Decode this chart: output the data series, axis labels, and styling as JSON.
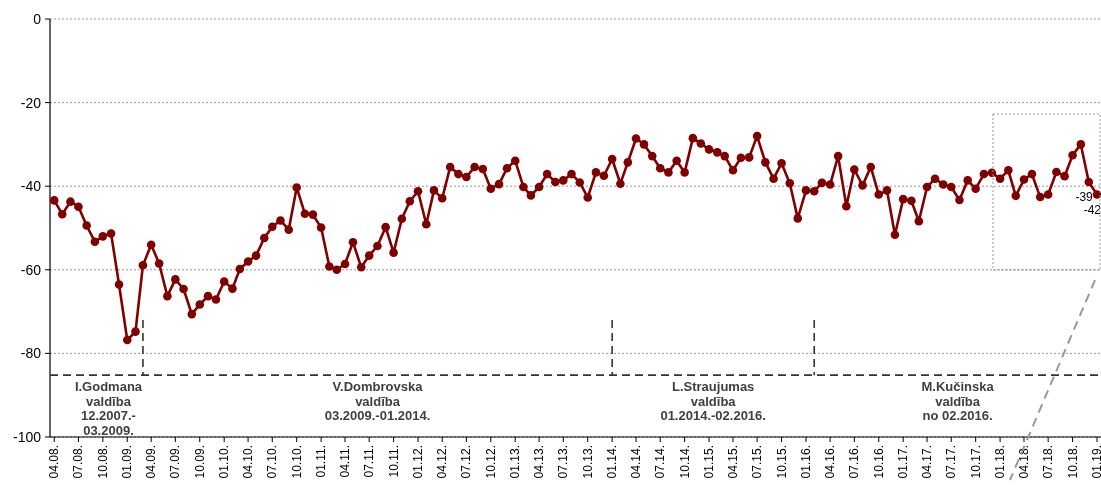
{
  "chart_data": {
    "type": "line",
    "x": [
      "2008-04",
      "2008-05",
      "2008-06",
      "2008-07",
      "2008-08",
      "2008-09",
      "2008-10",
      "2008-11",
      "2008-12",
      "2009-01",
      "2009-02",
      "2009-03",
      "2009-04",
      "2009-05",
      "2009-06",
      "2009-07",
      "2009-08",
      "2009-09",
      "2009-10",
      "2009-11",
      "2009-12",
      "2010-01",
      "2010-02",
      "2010-03",
      "2010-04",
      "2010-05",
      "2010-06",
      "2010-07",
      "2010-08",
      "2010-09",
      "2010-10",
      "2010-11",
      "2010-12",
      "2011-01",
      "2011-02",
      "2011-03",
      "2011-04",
      "2011-05",
      "2011-06",
      "2011-07",
      "2011-08",
      "2011-09",
      "2011-10",
      "2011-11",
      "2011-12",
      "2012-01",
      "2012-02",
      "2012-03",
      "2012-04",
      "2012-05",
      "2012-06",
      "2012-07",
      "2012-08",
      "2012-09",
      "2012-10",
      "2012-11",
      "2012-12",
      "2013-01",
      "2013-02",
      "2013-03",
      "2013-04",
      "2013-05",
      "2013-06",
      "2013-07",
      "2013-08",
      "2013-09",
      "2013-10",
      "2013-11",
      "2013-12",
      "2014-01",
      "2014-02",
      "2014-03",
      "2014-04",
      "2014-05",
      "2014-06",
      "2014-07",
      "2014-08",
      "2014-09",
      "2014-10",
      "2014-11",
      "2014-12",
      "2015-01",
      "2015-02",
      "2015-03",
      "2015-04",
      "2015-05",
      "2015-06",
      "2015-07",
      "2015-08",
      "2015-09",
      "2015-10",
      "2015-11",
      "2015-12",
      "2016-01",
      "2016-02",
      "2016-03",
      "2016-04",
      "2016-05",
      "2016-06",
      "2016-07",
      "2016-08",
      "2016-09",
      "2016-10",
      "2016-11",
      "2016-12",
      "2017-01",
      "2017-02",
      "2017-03",
      "2017-04",
      "2017-05",
      "2017-06",
      "2017-07",
      "2017-08",
      "2017-09",
      "2017-10",
      "2017-11",
      "2017-12",
      "2018-01",
      "2018-02",
      "2018-03",
      "2018-04",
      "2018-05",
      "2018-06",
      "2018-07",
      "2018-08",
      "2018-09",
      "2018-10",
      "2018-11",
      "2018-12",
      "2019-01"
    ],
    "series": [
      {
        "color": "#800000",
        "values": [
          -43.4,
          -46.7,
          -43.7,
          -44.9,
          -49.4,
          -53.3,
          -52.0,
          -51.3,
          -63.5,
          -76.8,
          -74.8,
          -58.9,
          -54.0,
          -58.5,
          -66.3,
          -62.3,
          -64.6,
          -70.6,
          -68.3,
          -66.3,
          -67.1,
          -62.8,
          -64.5,
          -59.8,
          -58.0,
          -56.6,
          -52.4,
          -49.7,
          -48.2,
          -50.4,
          -40.3,
          -46.6,
          -46.8,
          -49.9,
          -59.2,
          -60.0,
          -58.6,
          -53.4,
          -59.4,
          -56.6,
          -54.3,
          -49.8,
          -55.9,
          -47.8,
          -43.6,
          -41.2,
          -49.1,
          -41.0,
          -42.9,
          -35.4,
          -37.1,
          -37.8,
          -35.4,
          -35.9,
          -40.6,
          -39.5,
          -35.7,
          -33.9,
          -40.2,
          -42.2,
          -40.2,
          -37.1,
          -39.0,
          -38.6,
          -37.1,
          -39.1,
          -42.7,
          -36.7,
          -37.5,
          -33.5,
          -39.4,
          -34.3,
          -28.6,
          -30.0,
          -32.8,
          -35.7,
          -36.7,
          -33.9,
          -36.7,
          -28.5,
          -29.8,
          -31.2,
          -31.9,
          -32.8,
          -36.2,
          -33.2,
          -33.1,
          -28.0,
          -34.3,
          -38.2,
          -34.5,
          -39.3,
          -47.7,
          -41.0,
          -41.2,
          -39.2,
          -39.6,
          -32.8,
          -44.8,
          -36.0,
          -39.8,
          -35.4,
          -42.0,
          -41.0,
          -51.6,
          -43.1,
          -43.5,
          -48.4,
          -40.2,
          -38.2,
          -39.6,
          -40.2,
          -43.3,
          -38.6,
          -40.6,
          -37.1,
          -36.8,
          -38.2,
          -36.2,
          -42.3,
          -38.4,
          -37.1,
          -42.6,
          -42.0,
          -36.6,
          -37.6,
          -32.6,
          -30.0,
          -39,
          -42
        ],
        "value_labels": [
          null,
          null,
          null,
          null,
          null,
          null,
          null,
          null,
          null,
          null,
          null,
          null,
          null,
          null,
          null,
          null,
          null,
          null,
          null,
          null,
          null,
          null,
          null,
          null,
          null,
          null,
          null,
          null,
          null,
          null,
          null,
          null,
          null,
          null,
          null,
          null,
          null,
          null,
          null,
          null,
          null,
          null,
          null,
          null,
          null,
          null,
          null,
          null,
          null,
          null,
          null,
          null,
          null,
          null,
          null,
          null,
          null,
          null,
          null,
          null,
          null,
          null,
          null,
          null,
          null,
          null,
          null,
          null,
          null,
          null,
          null,
          null,
          null,
          null,
          null,
          null,
          null,
          null,
          null,
          null,
          null,
          null,
          null,
          null,
          null,
          null,
          null,
          null,
          null,
          null,
          null,
          null,
          null,
          null,
          null,
          null,
          null,
          null,
          null,
          null,
          null,
          null,
          null,
          null,
          null,
          null,
          null,
          null,
          null,
          null,
          null,
          null,
          null,
          null,
          null,
          null,
          null,
          null,
          null,
          null,
          null,
          null,
          null,
          null,
          null,
          null,
          null,
          null,
          "-39",
          "-42"
        ]
      }
    ],
    "ylim": [
      -100,
      0
    ],
    "yticks": [
      0,
      -20,
      -40,
      -60,
      -80,
      -100
    ],
    "xlim": [
      "2008-03-16",
      "2019-01-16"
    ],
    "xticks": [
      {
        "value": "2008-04",
        "label": "04.08."
      },
      {
        "value": "2008-07",
        "label": "07.08."
      },
      {
        "value": "2008-10",
        "label": "10.08."
      },
      {
        "value": "2009-01",
        "label": "01.09."
      },
      {
        "value": "2009-04",
        "label": "04.09."
      },
      {
        "value": "2009-07",
        "label": "07.09."
      },
      {
        "value": "2009-10",
        "label": "10.09."
      },
      {
        "value": "2010-01",
        "label": "01.10."
      },
      {
        "value": "2010-04",
        "label": "04.10."
      },
      {
        "value": "2010-07",
        "label": "07.10."
      },
      {
        "value": "2010-10",
        "label": "10.10."
      },
      {
        "value": "2011-01",
        "label": "01.11."
      },
      {
        "value": "2011-04",
        "label": "04.11."
      },
      {
        "value": "2011-07",
        "label": "07.11."
      },
      {
        "value": "2011-10",
        "label": "10.11."
      },
      {
        "value": "2012-01",
        "label": "01.12."
      },
      {
        "value": "2012-04",
        "label": "04.12."
      },
      {
        "value": "2012-07",
        "label": "07.12."
      },
      {
        "value": "2012-10",
        "label": "10.12."
      },
      {
        "value": "2013-01",
        "label": "01.13."
      },
      {
        "value": "2013-04",
        "label": "04.13."
      },
      {
        "value": "2013-07",
        "label": "07.13."
      },
      {
        "value": "2013-10",
        "label": "10.13."
      },
      {
        "value": "2014-01",
        "label": "01.14."
      },
      {
        "value": "2014-04",
        "label": "04.14."
      },
      {
        "value": "2014-07",
        "label": "07.14."
      },
      {
        "value": "2014-10",
        "label": "10.14."
      },
      {
        "value": "2015-01",
        "label": "01.15."
      },
      {
        "value": "2015-04",
        "label": "04.15."
      },
      {
        "value": "2015-07",
        "label": "07.15."
      },
      {
        "value": "2015-10",
        "label": "10.15."
      },
      {
        "value": "2016-01",
        "label": "01.16."
      },
      {
        "value": "2016-04",
        "label": "04.16."
      },
      {
        "value": "2016-07",
        "label": "07.16."
      },
      {
        "value": "2016-10",
        "label": "10.16."
      },
      {
        "value": "2017-01",
        "label": "01.17."
      },
      {
        "value": "2017-04",
        "label": "04.17."
      },
      {
        "value": "2017-07",
        "label": "07.17."
      },
      {
        "value": "2017-10",
        "label": "10.17."
      },
      {
        "value": "2018-01",
        "label": "01.18."
      },
      {
        "value": "2018-04",
        "label": "04.18."
      },
      {
        "value": "2018-07",
        "label": "07.18."
      },
      {
        "value": "2018-10",
        "label": "10.18."
      },
      {
        "value": "2019-01",
        "label": "01.19."
      }
    ],
    "ref_lines": [
      {
        "axis": "y",
        "value": -85.2,
        "color": "#333333",
        "line_style": "dashed"
      },
      {
        "axis": "x",
        "value": "2009-03",
        "color": "#333333",
        "line_style": "dashed"
      },
      {
        "axis": "x",
        "value": "2014-01",
        "color": "#333333",
        "line_style": "dashed"
      },
      {
        "axis": "x",
        "value": "2016-02",
        "color": "#333333",
        "line_style": "dashed"
      }
    ],
    "annotations": [
      "I.Godmana\nvaldība\n12.2007.-\n03.2009.",
      "V.Dombrovska\nvaldība\n03.2009.-01.2014.",
      "L.Straujumas\nvaldība\n01.2014.-02.2016.",
      "M.Kučinska\nvaldība\nno 02.2016."
    ],
    "grid": "y",
    "marker": "circle",
    "line_style": "solid"
  }
}
